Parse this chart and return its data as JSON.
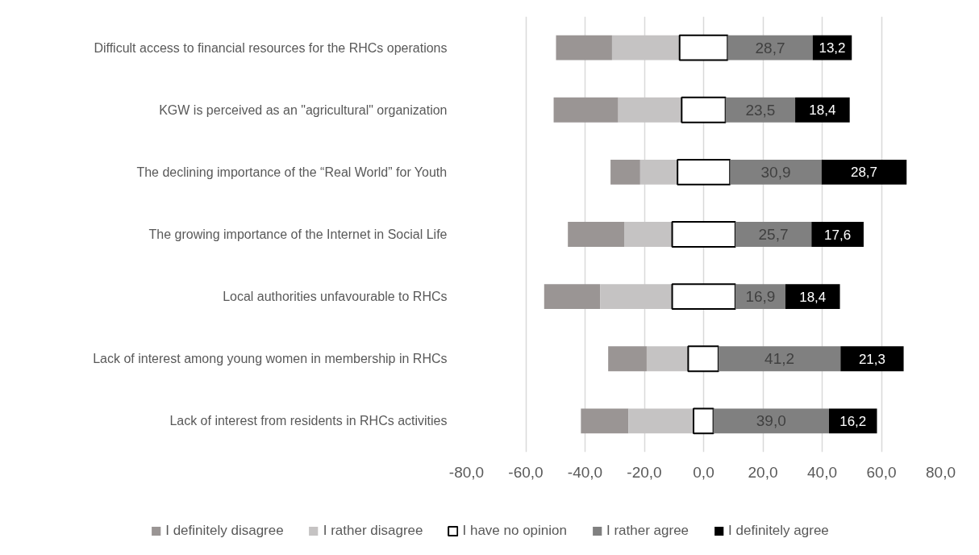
{
  "chart_data": {
    "type": "bar",
    "orientation": "horizontal",
    "categories": [
      "Difficult access to financial resources for the RHCs operations",
      "KGW is perceived as an \"agricultural\" organization",
      "The declining importance of the “Real World” for Youth",
      "The growing importance of the Internet in Social Life",
      "Local authorities unfavourable to RHCs",
      "Lack of interest among young women in membership in RHCs",
      "Lack of interest from residents in RHCs activities"
    ],
    "series": [
      {
        "name": "I definitely disagree",
        "color": "#9a9594",
        "values": [
          18.9,
          21.8,
          10.0,
          19.0,
          18.9,
          13.0,
          16.0
        ],
        "base": [
          -49.8,
          -50.6,
          -31.4,
          -45.8,
          -53.8,
          -32.2,
          -41.4
        ]
      },
      {
        "name": "I rather disagree",
        "color": "#c5c3c3",
        "values": [
          22.8,
          21.4,
          12.6,
          16.2,
          24.3,
          14.0,
          22.0
        ],
        "base": [
          -30.9,
          -28.8,
          -21.4,
          -26.8,
          -34.9,
          -19.2,
          -25.4
        ]
      },
      {
        "name": "I have no opinion",
        "color": "#ffffff",
        "values": [
          16.2,
          14.8,
          17.7,
          21.3,
          21.3,
          10.2,
          6.7
        ],
        "base": [
          -8.1,
          -7.4,
          -8.8,
          -10.6,
          -10.6,
          -5.2,
          -3.4
        ]
      },
      {
        "name": "I rather agree",
        "color": "#808080",
        "values": [
          28.7,
          23.5,
          30.9,
          25.7,
          16.9,
          41.2,
          39.0
        ],
        "base": [
          8.1,
          7.4,
          8.9,
          10.7,
          10.7,
          5.0,
          3.3
        ],
        "value_labels": [
          "28,7",
          "23,5",
          "30,9",
          "25,7",
          "16,9",
          "41,2",
          "39,0"
        ]
      },
      {
        "name": "I definitely agree",
        "color": "#000000",
        "values": [
          13.2,
          18.4,
          28.7,
          17.6,
          18.4,
          21.3,
          16.2
        ],
        "base": [
          36.8,
          30.9,
          39.8,
          36.4,
          27.6,
          46.2,
          42.3
        ],
        "value_labels": [
          "13,2",
          "18,4",
          "28,7",
          "17,6",
          "18,4",
          "21,3",
          "16,2"
        ]
      }
    ],
    "xlim": [
      -80,
      80
    ],
    "xticks": [
      {
        "value": -80,
        "label": "-80,0"
      },
      {
        "value": -60,
        "label": "-60,0"
      },
      {
        "value": -40,
        "label": "-40,0"
      },
      {
        "value": -20,
        "label": "-20,0"
      },
      {
        "value": 0,
        "label": "0,0"
      },
      {
        "value": 20,
        "label": "20,0"
      },
      {
        "value": 40,
        "label": "40,0"
      },
      {
        "value": 60,
        "label": "60,0"
      },
      {
        "value": 80,
        "label": "80,0"
      }
    ],
    "grid": "x",
    "legend": "bottom"
  }
}
